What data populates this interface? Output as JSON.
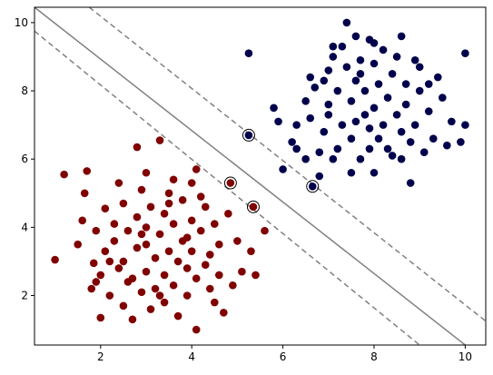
{
  "chart_data": {
    "type": "scatter",
    "title": "",
    "xlabel": "",
    "ylabel": "",
    "xlim": [
      0.55,
      10.45
    ],
    "ylim": [
      0.55,
      10.45
    ],
    "xticks": [
      2,
      4,
      6,
      8,
      10
    ],
    "yticks": [
      2,
      4,
      6,
      8,
      10
    ],
    "xtick_labels": [
      "2",
      "4",
      "6",
      "8",
      "10"
    ],
    "ytick_labels": [
      "2",
      "4",
      "6",
      "8",
      "10"
    ],
    "grid": false,
    "legend": "none",
    "colors": {
      "class_0": "#800000",
      "class_1": "#00004c",
      "boundary": "#808080"
    },
    "decision_boundary": {
      "line": [
        [
          0.55,
          10.45
        ],
        [
          10.0,
          0.55
        ]
      ],
      "margin_upper": [
        [
          1.75,
          10.45
        ],
        [
          10.45,
          1.25
        ]
      ],
      "margin_lower": [
        [
          0.55,
          9.75
        ],
        [
          9.0,
          0.55
        ]
      ]
    },
    "support_vectors": [
      [
        5.25,
        6.7
      ],
      [
        6.65,
        5.2
      ],
      [
        4.85,
        5.3
      ],
      [
        5.35,
        4.6
      ]
    ],
    "series": [
      {
        "class": 1,
        "points": [
          [
            5.25,
            6.7
          ],
          [
            6.65,
            5.2
          ],
          [
            5.25,
            9.1
          ],
          [
            5.8,
            7.5
          ],
          [
            5.9,
            7.1
          ],
          [
            6.0,
            5.7
          ],
          [
            6.2,
            6.5
          ],
          [
            6.3,
            6.3
          ],
          [
            6.3,
            7.0
          ],
          [
            6.5,
            6.0
          ],
          [
            6.6,
            7.2
          ],
          [
            6.7,
            8.1
          ],
          [
            6.8,
            5.5
          ],
          [
            6.8,
            6.2
          ],
          [
            6.9,
            6.8
          ],
          [
            7.0,
            7.6
          ],
          [
            7.0,
            8.6
          ],
          [
            7.1,
            9.0
          ],
          [
            7.1,
            9.3
          ],
          [
            7.2,
            6.3
          ],
          [
            7.3,
            7.0
          ],
          [
            7.4,
            10.0
          ],
          [
            7.5,
            5.6
          ],
          [
            7.5,
            7.7
          ],
          [
            7.6,
            8.3
          ],
          [
            7.6,
            9.6
          ],
          [
            7.7,
            6.0
          ],
          [
            7.7,
            8.9
          ],
          [
            7.8,
            7.3
          ],
          [
            7.8,
            8.0
          ],
          [
            7.9,
            6.9
          ],
          [
            7.9,
            9.5
          ],
          [
            8.0,
            5.6
          ],
          [
            8.0,
            7.5
          ],
          [
            8.0,
            8.8
          ],
          [
            8.1,
            6.6
          ],
          [
            8.1,
            8.2
          ],
          [
            8.2,
            7.0
          ],
          [
            8.2,
            9.2
          ],
          [
            8.3,
            6.3
          ],
          [
            8.3,
            7.8
          ],
          [
            8.4,
            8.5
          ],
          [
            8.5,
            7.3
          ],
          [
            8.5,
            9.0
          ],
          [
            8.6,
            6.0
          ],
          [
            8.6,
            6.8
          ],
          [
            8.7,
            7.6
          ],
          [
            8.7,
            8.2
          ],
          [
            8.8,
            5.3
          ],
          [
            8.8,
            6.5
          ],
          [
            8.9,
            7.0
          ],
          [
            9.0,
            8.0
          ],
          [
            9.0,
            8.7
          ],
          [
            9.1,
            6.2
          ],
          [
            9.2,
            7.4
          ],
          [
            9.3,
            6.6
          ],
          [
            9.4,
            8.4
          ],
          [
            9.5,
            7.8
          ],
          [
            9.6,
            6.4
          ],
          [
            9.7,
            7.1
          ],
          [
            9.9,
            6.5
          ],
          [
            10.0,
            9.1
          ],
          [
            10.0,
            7.0
          ],
          [
            7.2,
            8.0
          ],
          [
            7.0,
            7.3
          ],
          [
            6.9,
            8.3
          ],
          [
            7.4,
            8.7
          ],
          [
            7.6,
            7.1
          ],
          [
            7.3,
            9.3
          ],
          [
            8.0,
            9.4
          ],
          [
            8.4,
            6.1
          ],
          [
            7.9,
            6.3
          ],
          [
            7.5,
            6.6
          ],
          [
            6.6,
            8.4
          ],
          [
            6.5,
            7.7
          ],
          [
            7.1,
            6.0
          ],
          [
            8.6,
            9.6
          ],
          [
            8.9,
            8.9
          ],
          [
            9.2,
            8.2
          ],
          [
            7.7,
            8.5
          ]
        ]
      },
      {
        "class": 0,
        "points": [
          [
            4.85,
            5.3
          ],
          [
            5.35,
            4.6
          ],
          [
            1.0,
            3.05
          ],
          [
            1.2,
            5.55
          ],
          [
            1.5,
            3.5
          ],
          [
            1.6,
            4.2
          ],
          [
            1.65,
            5.0
          ],
          [
            1.7,
            5.65
          ],
          [
            1.8,
            2.2
          ],
          [
            1.85,
            2.95
          ],
          [
            1.9,
            3.9
          ],
          [
            2.0,
            1.35
          ],
          [
            2.0,
            2.6
          ],
          [
            2.1,
            3.3
          ],
          [
            2.1,
            4.55
          ],
          [
            2.2,
            2.0
          ],
          [
            2.3,
            3.6
          ],
          [
            2.3,
            4.1
          ],
          [
            2.4,
            2.8
          ],
          [
            2.5,
            1.7
          ],
          [
            2.5,
            3.0
          ],
          [
            2.5,
            4.7
          ],
          [
            2.6,
            2.4
          ],
          [
            2.6,
            3.9
          ],
          [
            2.7,
            1.3
          ],
          [
            2.8,
            6.35
          ],
          [
            2.8,
            3.4
          ],
          [
            2.8,
            4.3
          ],
          [
            2.9,
            2.1
          ],
          [
            2.9,
            5.1
          ],
          [
            3.0,
            2.7
          ],
          [
            3.0,
            3.5
          ],
          [
            3.0,
            4.0
          ],
          [
            3.1,
            1.6
          ],
          [
            3.1,
            4.6
          ],
          [
            3.2,
            2.2
          ],
          [
            3.2,
            3.1
          ],
          [
            3.3,
            6.55
          ],
          [
            3.3,
            3.8
          ],
          [
            3.4,
            1.8
          ],
          [
            3.4,
            2.6
          ],
          [
            3.4,
            4.4
          ],
          [
            3.5,
            3.3
          ],
          [
            3.5,
            5.0
          ],
          [
            3.6,
            2.3
          ],
          [
            3.6,
            4.1
          ],
          [
            3.7,
            1.4
          ],
          [
            3.7,
            3.0
          ],
          [
            3.8,
            3.6
          ],
          [
            3.8,
            4.8
          ],
          [
            3.9,
            2.0
          ],
          [
            3.9,
            2.8
          ],
          [
            4.0,
            3.3
          ],
          [
            4.0,
            4.2
          ],
          [
            4.1,
            1.0
          ],
          [
            4.1,
            5.7
          ],
          [
            4.1,
            2.5
          ],
          [
            4.2,
            3.9
          ],
          [
            4.3,
            2.9
          ],
          [
            4.3,
            4.6
          ],
          [
            4.4,
            3.2
          ],
          [
            4.5,
            1.8
          ],
          [
            4.5,
            4.1
          ],
          [
            4.6,
            2.6
          ],
          [
            4.6,
            3.5
          ],
          [
            4.7,
            1.5
          ],
          [
            4.8,
            4.4
          ],
          [
            4.9,
            2.3
          ],
          [
            5.0,
            3.6
          ],
          [
            5.1,
            2.7
          ],
          [
            5.3,
            3.3
          ],
          [
            5.4,
            2.6
          ],
          [
            5.6,
            3.9
          ],
          [
            4.0,
            5.3
          ],
          [
            3.6,
            5.4
          ],
          [
            2.4,
            5.3
          ],
          [
            3.3,
            2.0
          ],
          [
            2.2,
            3.0
          ],
          [
            2.7,
            2.5
          ],
          [
            4.2,
            4.9
          ],
          [
            3.0,
            5.6
          ],
          [
            1.9,
            2.4
          ],
          [
            4.4,
            2.2
          ],
          [
            3.9,
            3.7
          ],
          [
            2.9,
            3.8
          ],
          [
            3.5,
            4.7
          ]
        ]
      }
    ]
  }
}
